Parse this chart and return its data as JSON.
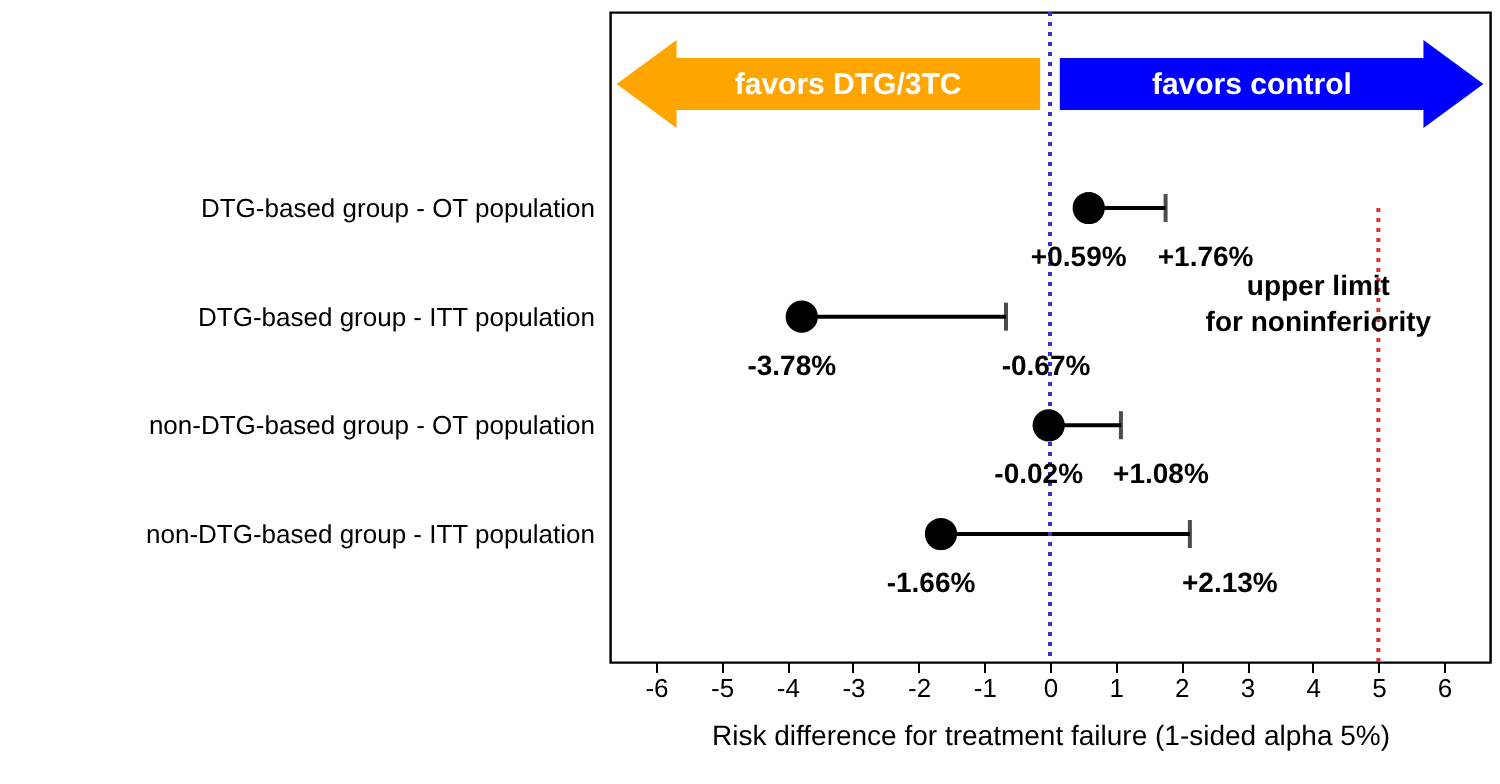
{
  "chart_data": {
    "type": "scatter",
    "orientation": "horizontal",
    "marker": "circle",
    "categories": [
      "DTG-based group - OT population",
      "DTG-based group - ITT population",
      "non-DTG-based group - OT population",
      "non-DTG-based group - ITT population"
    ],
    "series": [
      {
        "color": "#000000",
        "values": [
          0.59,
          -3.78,
          -0.02,
          -1.66
        ],
        "errors": [
          [
            0.59,
            1.76
          ],
          [
            -3.78,
            -0.67
          ],
          [
            -0.02,
            1.08
          ],
          [
            -1.66,
            2.13
          ]
        ],
        "value_labels": [
          "+0.59%",
          "-3.78%",
          "-0.02%",
          "-1.66%"
        ]
      }
    ],
    "xlabel": "Risk difference for treatment failure (1-sided alpha 5%)",
    "xlim": [
      -6.7,
      6.7
    ],
    "xticks": [
      -6,
      -5,
      -4,
      -3,
      -2,
      -1,
      0,
      1,
      2,
      3,
      4,
      5,
      6
    ],
    "ref_lines": [
      {
        "axis": "x",
        "value": 0,
        "color": "#3333cc",
        "line_style": "dotted"
      },
      {
        "axis": "x",
        "value": 5,
        "label": "upper limit for noninferiority",
        "color": "#dd3333",
        "line_style": "dotted"
      }
    ],
    "annotations": [
      "favors DTG/3TC",
      "favors control",
      {
        "text": "+1.76%",
        "x": 1.76,
        "y": "DTG-based group - OT population"
      },
      {
        "text": "-0.67%",
        "x": -0.67,
        "y": "DTG-based group - ITT population"
      },
      {
        "text": "+1.08%",
        "x": 1.08,
        "y": "non-DTG-based group - OT population"
      },
      {
        "text": "+2.13%",
        "x": 2.13,
        "y": "non-DTG-based group - ITT population"
      }
    ]
  }
}
